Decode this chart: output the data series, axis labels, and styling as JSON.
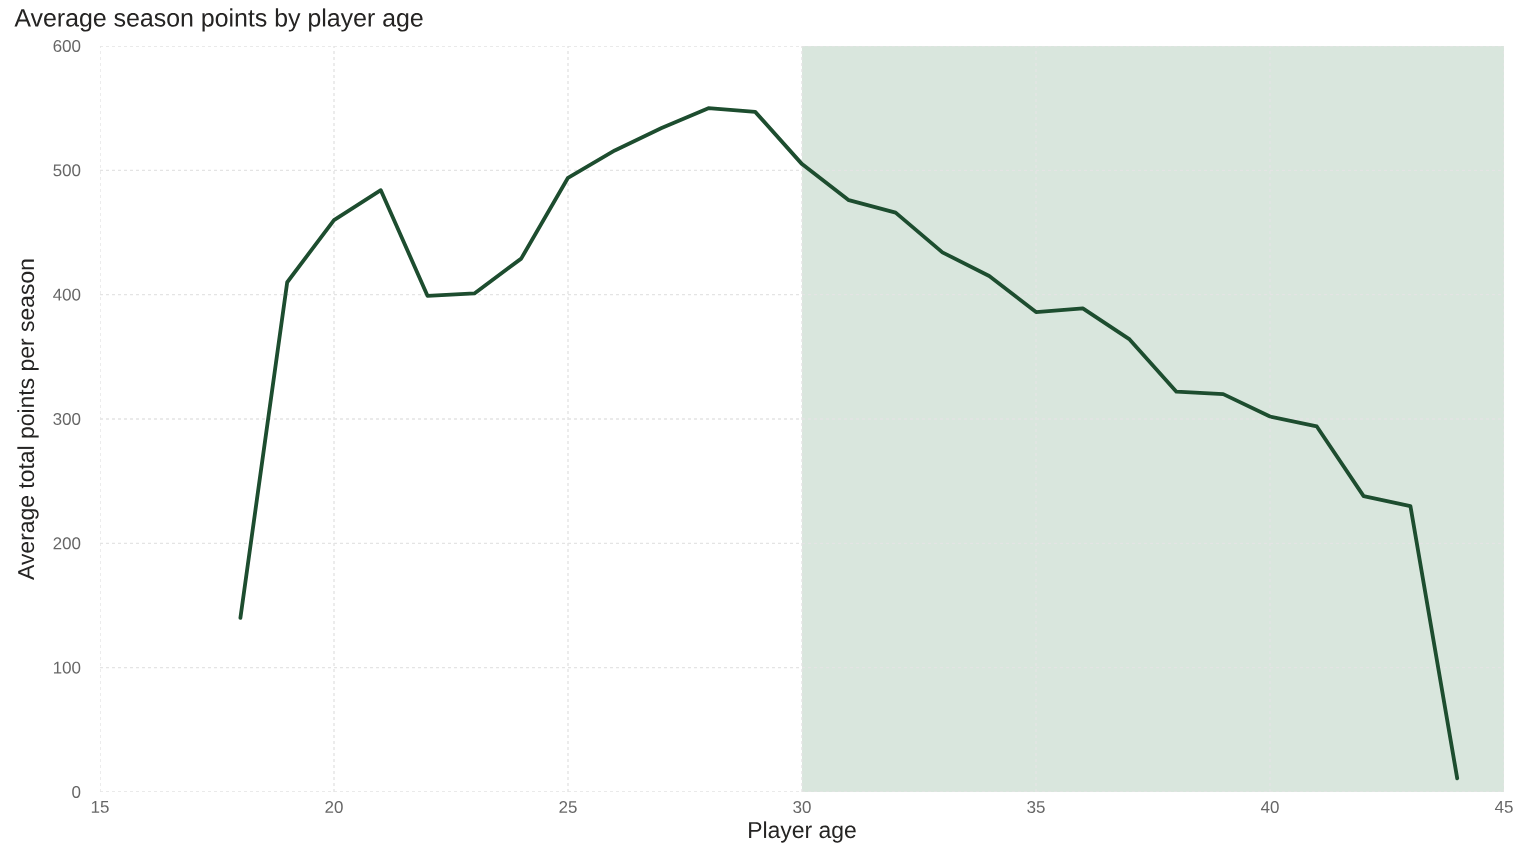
{
  "chart_data": {
    "type": "line",
    "title": "Average season points by player age",
    "xlabel": "Player age",
    "ylabel": "Average total points per season",
    "x": [
      18,
      19,
      20,
      21,
      22,
      23,
      24,
      25,
      26,
      27,
      28,
      29,
      30,
      31,
      32,
      33,
      34,
      35,
      36,
      37,
      38,
      39,
      40,
      41,
      42,
      43,
      44
    ],
    "values": [
      140,
      410,
      460,
      484,
      399,
      401,
      429,
      494,
      516,
      534,
      550,
      547,
      505,
      476,
      466,
      434,
      415,
      386,
      389,
      364,
      322,
      320,
      302,
      294,
      238,
      230,
      11
    ],
    "color": "#1d4d2f",
    "xlim": [
      15,
      45
    ],
    "ylim": [
      0,
      600
    ],
    "xticks": [
      15,
      20,
      25,
      30,
      35,
      40,
      45
    ],
    "yticks": [
      0,
      100,
      200,
      300,
      400,
      500,
      600
    ],
    "grid": true,
    "bands": [
      {
        "axis": "x",
        "from": 30,
        "to": 45,
        "color": "#d9e6dd"
      }
    ]
  }
}
